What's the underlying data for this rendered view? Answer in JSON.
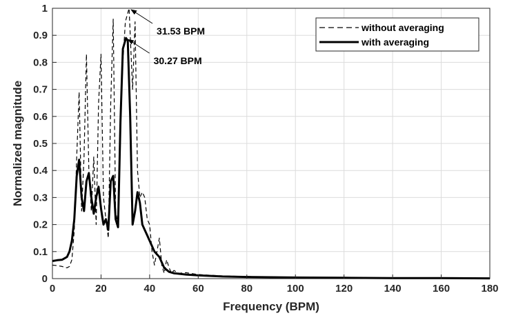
{
  "chart_data": {
    "type": "line",
    "title": "",
    "xlabel": "Frequency (BPM)",
    "ylabel": "Normalized magnitude",
    "xlim": [
      0,
      180
    ],
    "ylim": [
      0,
      1
    ],
    "xticks": [
      "0",
      "20",
      "40",
      "60",
      "80",
      "100",
      "120",
      "140",
      "160",
      "180"
    ],
    "yticks": [
      "0",
      "0.1",
      "0.2",
      "0.3",
      "0.4",
      "0.5",
      "0.6",
      "0.7",
      "0.8",
      "0.9",
      "1"
    ],
    "grid": true,
    "legend": {
      "position": "top-right",
      "entries": [
        {
          "label": "without averaging",
          "style": "dashed"
        },
        {
          "label": "with averaging",
          "style": "solid"
        }
      ]
    },
    "series": [
      {
        "name": "without averaging",
        "style": "dashed",
        "color": "#000000",
        "x": [
          0,
          2,
          4,
          6,
          7,
          8,
          9,
          10,
          11,
          12,
          13,
          14,
          15,
          16,
          17,
          18,
          19,
          20,
          21,
          22,
          23,
          24,
          25,
          26,
          27,
          28,
          29,
          30,
          31.53,
          33,
          34,
          35,
          36,
          37,
          38,
          39,
          40,
          41,
          42,
          43,
          44,
          45,
          46,
          47,
          48,
          49,
          50,
          52,
          55,
          60,
          70,
          80,
          100,
          120,
          140,
          160,
          180
        ],
        "y": [
          0.05,
          0.048,
          0.045,
          0.04,
          0.045,
          0.07,
          0.18,
          0.45,
          0.69,
          0.25,
          0.45,
          0.83,
          0.4,
          0.25,
          0.45,
          0.2,
          0.65,
          0.83,
          0.3,
          0.22,
          0.15,
          0.65,
          0.96,
          0.25,
          0.2,
          0.55,
          0.8,
          0.95,
          1.0,
          0.7,
          0.95,
          0.4,
          0.3,
          0.32,
          0.3,
          0.22,
          0.2,
          0.1,
          0.05,
          0.1,
          0.15,
          0.05,
          0.02,
          0.07,
          0.04,
          0.02,
          0.03,
          0.02,
          0.022,
          0.015,
          0.01,
          0.008,
          0.005,
          0.004,
          0.003,
          0.002,
          0.002
        ]
      },
      {
        "name": "with averaging",
        "style": "solid",
        "color": "#000000",
        "x": [
          0,
          2,
          4,
          6,
          7,
          8,
          9,
          10,
          11,
          12,
          13,
          14,
          15,
          16,
          17,
          18,
          19,
          20,
          21,
          22,
          23,
          24,
          25,
          26,
          27,
          28,
          29,
          30.27,
          31,
          32,
          33,
          34,
          35,
          36,
          37,
          38,
          39,
          40,
          42,
          44,
          46,
          48,
          50,
          55,
          60,
          70,
          80,
          100,
          120,
          140,
          160,
          180
        ],
        "y": [
          0.065,
          0.068,
          0.07,
          0.08,
          0.1,
          0.14,
          0.22,
          0.38,
          0.44,
          0.3,
          0.25,
          0.36,
          0.39,
          0.3,
          0.24,
          0.3,
          0.34,
          0.26,
          0.2,
          0.22,
          0.18,
          0.36,
          0.38,
          0.22,
          0.19,
          0.58,
          0.85,
          0.89,
          0.88,
          0.6,
          0.2,
          0.25,
          0.32,
          0.28,
          0.2,
          0.18,
          0.16,
          0.14,
          0.1,
          0.08,
          0.04,
          0.025,
          0.02,
          0.015,
          0.012,
          0.008,
          0.006,
          0.004,
          0.003,
          0.002,
          0.002,
          0.001
        ]
      }
    ],
    "annotations": [
      {
        "text": "31.53 BPM",
        "x": 31.53,
        "y": 1.0
      },
      {
        "text": "30.27 BPM",
        "x": 30.27,
        "y": 0.89
      }
    ]
  }
}
